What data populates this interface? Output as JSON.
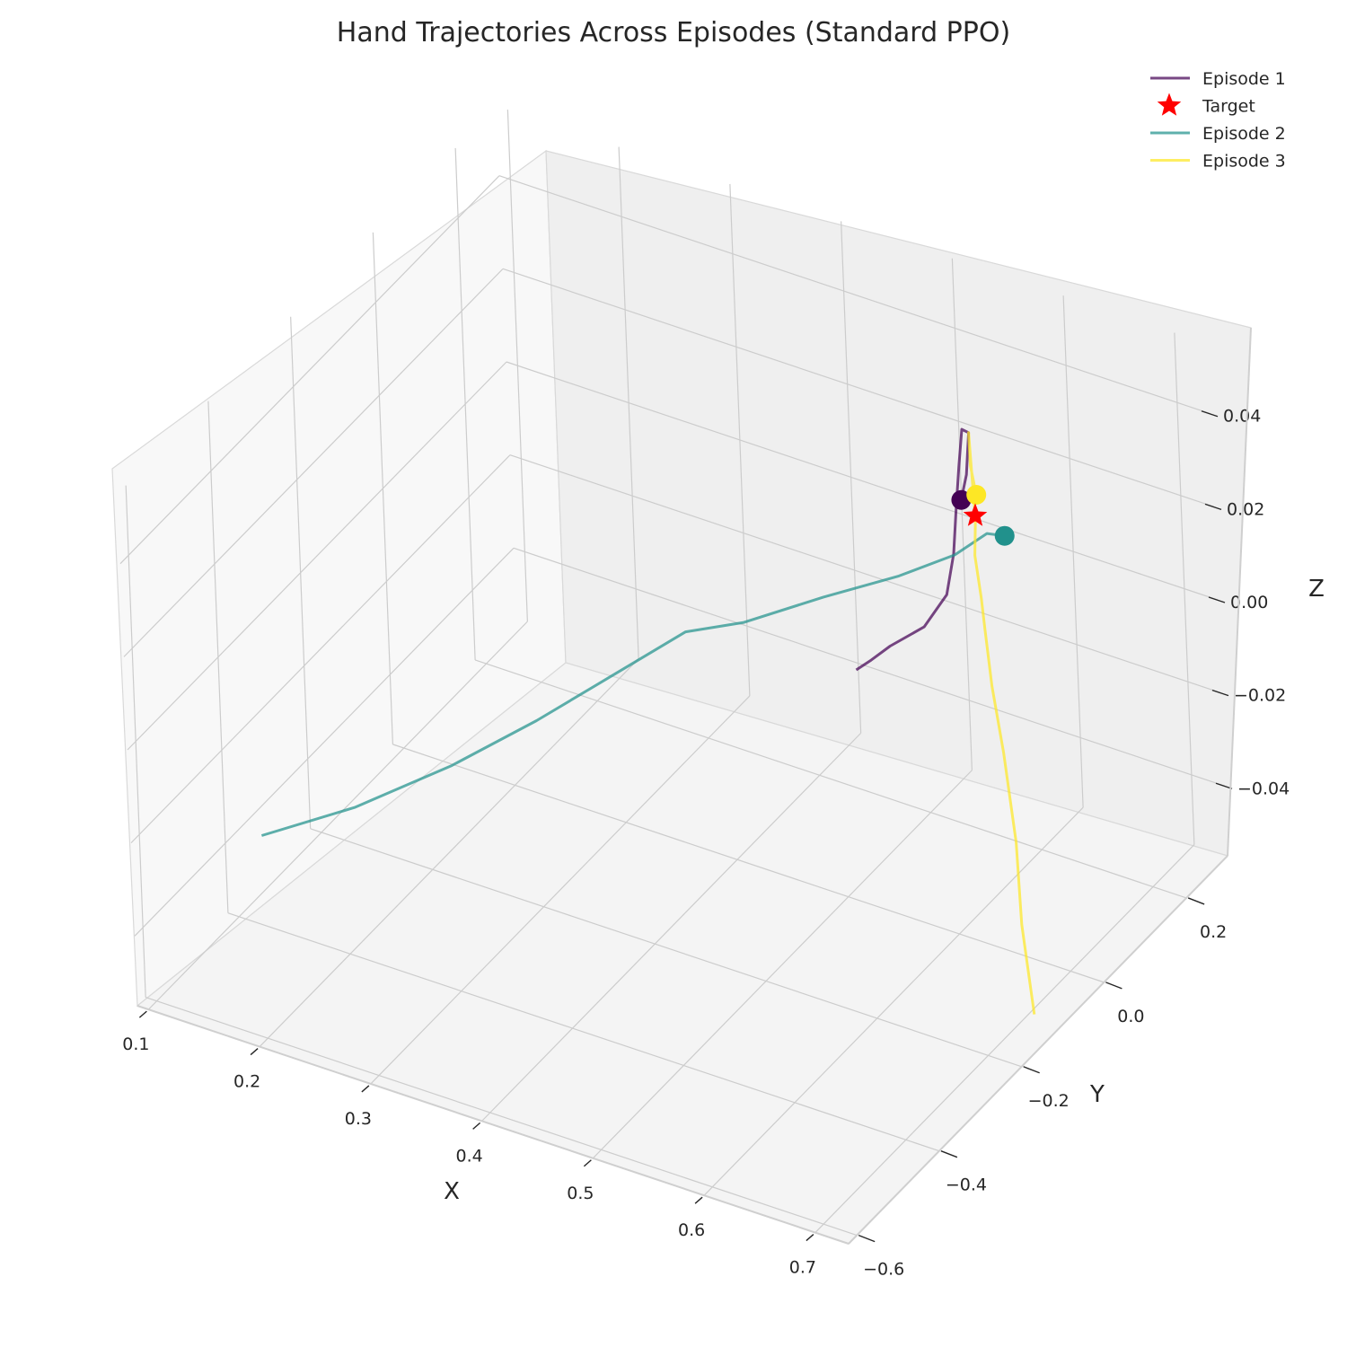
{
  "chart_data": {
    "type": "line",
    "projection": "3d",
    "title": "Hand Trajectories Across Episodes (Standard PPO)",
    "xlabel": "X",
    "ylabel": "Y",
    "zlabel": "Z",
    "xticks": [
      "0.1",
      "0.2",
      "0.3",
      "0.4",
      "0.5",
      "0.6",
      "0.7"
    ],
    "yticks": [
      "−0.6",
      "−0.4",
      "−0.2",
      "0.0",
      "0.2"
    ],
    "zticks": [
      "−0.04",
      "−0.02",
      "0.00",
      "0.02",
      "0.04"
    ],
    "xlim": [
      0.09,
      0.73
    ],
    "ylim": [
      -0.62,
      0.3
    ],
    "zlim": [
      -0.055,
      0.055
    ],
    "grid": true,
    "legend_position": "top-right",
    "target": {
      "label": "Target",
      "x": 0.59,
      "y": 0.1,
      "z": 0.025,
      "color": "#ff0000",
      "marker": "star"
    },
    "series": [
      {
        "name": "Episode 1",
        "color": "#440154",
        "start": {
          "x": 0.57,
          "y": 0.12,
          "z": 0.025
        },
        "points": [
          [
            0.57,
            0.12,
            0.025
          ],
          [
            0.56,
            0.16,
            0.026
          ],
          [
            0.54,
            0.22,
            0.028
          ],
          [
            0.53,
            0.23,
            0.027
          ],
          [
            0.53,
            0.22,
            0.02
          ],
          [
            0.53,
            0.21,
            0.012
          ],
          [
            0.53,
            0.2,
            0.003
          ],
          [
            0.53,
            0.18,
            -0.004
          ],
          [
            0.52,
            0.15,
            -0.009
          ],
          [
            0.5,
            0.12,
            -0.012
          ],
          [
            0.49,
            0.1,
            -0.014
          ],
          [
            0.48,
            0.09,
            -0.016
          ]
        ]
      },
      {
        "name": "Episode 2",
        "color": "#21918c",
        "start": {
          "x": 0.62,
          "y": 0.09,
          "z": 0.024
        },
        "points": [
          [
            0.62,
            0.09,
            0.024
          ],
          [
            0.6,
            0.1,
            0.022
          ],
          [
            0.57,
            0.1,
            0.015
          ],
          [
            0.53,
            0.07,
            0.01
          ],
          [
            0.48,
            0.02,
            0.006
          ],
          [
            0.43,
            -0.04,
            0.002
          ],
          [
            0.4,
            -0.1,
            0.003
          ],
          [
            0.35,
            -0.15,
            -0.006
          ],
          [
            0.3,
            -0.2,
            -0.015
          ],
          [
            0.24,
            -0.25,
            -0.025
          ],
          [
            0.17,
            -0.3,
            -0.035
          ],
          [
            0.1,
            -0.34,
            -0.043
          ]
        ]
      },
      {
        "name": "Episode 3",
        "color": "#fde725",
        "start": {
          "x": 0.58,
          "y": 0.13,
          "z": 0.026
        },
        "points": [
          [
            0.58,
            0.13,
            0.026
          ],
          [
            0.56,
            0.17,
            0.027
          ],
          [
            0.54,
            0.22,
            0.028
          ],
          [
            0.59,
            0.1,
            0.024
          ],
          [
            0.6,
            0.07,
            0.02
          ],
          [
            0.62,
            0.03,
            0.016
          ],
          [
            0.63,
            0.01,
            0.012
          ],
          [
            0.65,
            -0.03,
            0.005
          ],
          [
            0.67,
            -0.06,
            -0.005
          ],
          [
            0.69,
            -0.09,
            -0.02
          ],
          [
            0.7,
            -0.11,
            -0.035
          ],
          [
            0.72,
            -0.14,
            -0.05
          ]
        ]
      }
    ]
  }
}
